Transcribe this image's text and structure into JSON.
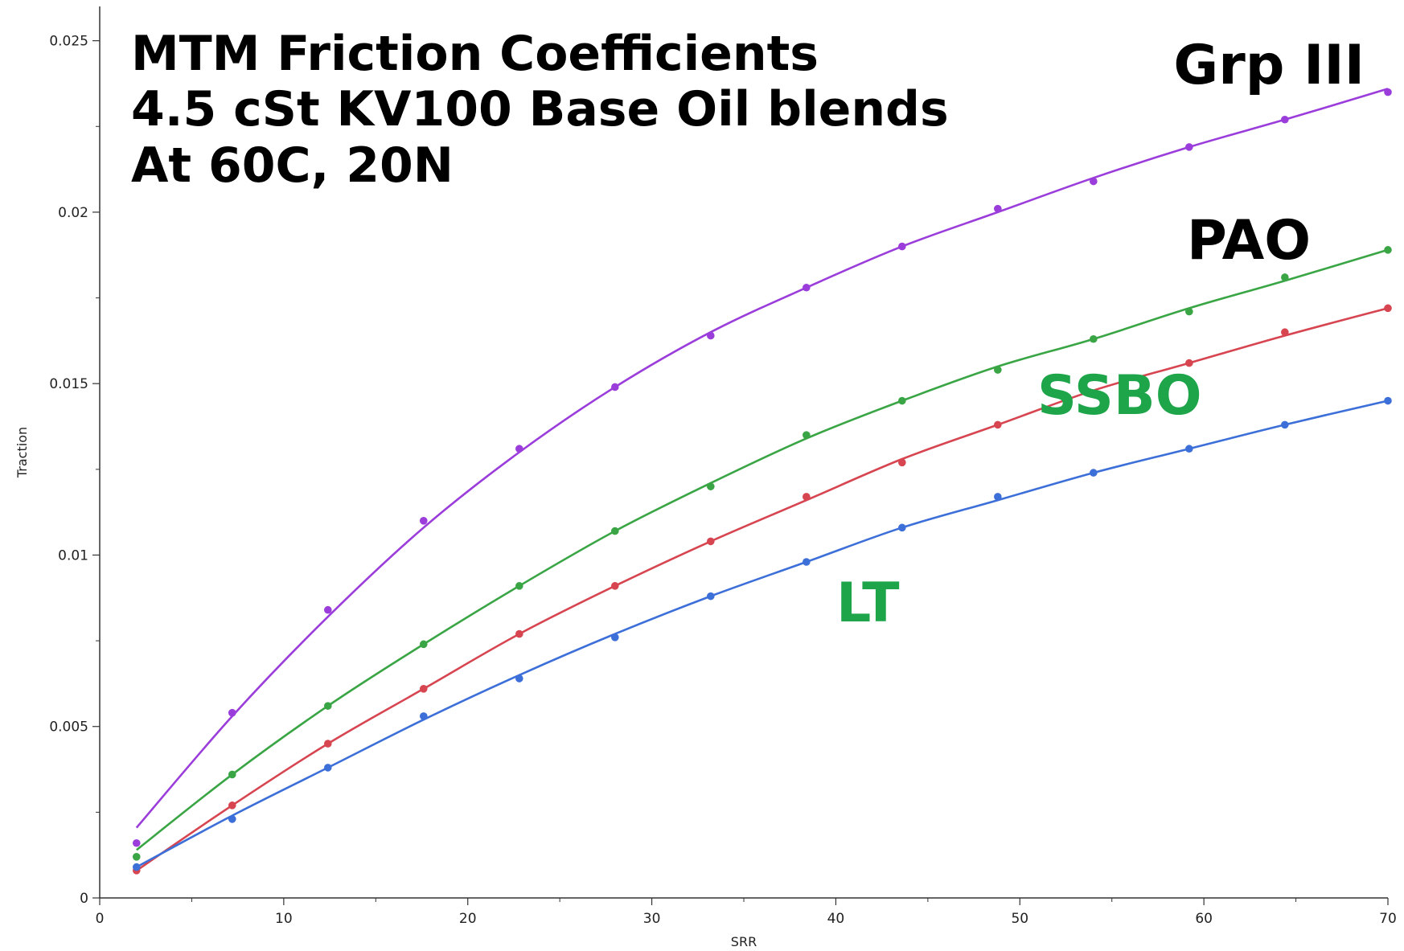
{
  "chart_data": {
    "type": "scatter",
    "title": [
      "MTM Friction Coefficients",
      "4.5 cSt KV100 Base Oil blends",
      "At 60C, 20N"
    ],
    "xlabel": "SRR",
    "ylabel": "Traction",
    "xlim": [
      0,
      70
    ],
    "ylim": [
      0,
      0.026
    ],
    "xticks": [
      0,
      10,
      20,
      30,
      40,
      50,
      60,
      70
    ],
    "xtick_labels": [
      "0",
      "10",
      "20",
      "30",
      "40",
      "50",
      "60",
      "70"
    ],
    "yticks": [
      0,
      0.005,
      0.01,
      0.015,
      0.02,
      0.025
    ],
    "ytick_labels": [
      "0",
      "0.005",
      "0.01",
      "0.015",
      "0.02",
      "0.025"
    ],
    "x": [
      2,
      7.2,
      12.4,
      17.6,
      22.8,
      28,
      33.2,
      38.4,
      43.6,
      48.8,
      54,
      59.2,
      64.4,
      70
    ],
    "series": [
      {
        "key": "grp3",
        "color": "#9b3ddb",
        "values": [
          0.0016,
          0.0054,
          0.0084,
          0.011,
          0.0131,
          0.0149,
          0.0164,
          0.0178,
          0.019,
          0.0201,
          0.0209,
          0.0219,
          0.0227,
          0.0235
        ],
        "fit": [
          0.00205,
          0.0053,
          0.0082,
          0.0108,
          0.013,
          0.0149,
          0.0165,
          0.0178,
          0.019,
          0.02,
          0.021,
          0.0219,
          0.0227,
          0.0236
        ]
      },
      {
        "key": "pao",
        "color": "#3aa545",
        "values": [
          0.0012,
          0.0036,
          0.0056,
          0.0074,
          0.0091,
          0.0107,
          0.012,
          0.0135,
          0.0145,
          0.0154,
          0.0163,
          0.0171,
          0.0181,
          0.0189
        ],
        "fit": [
          0.0014,
          0.0036,
          0.0056,
          0.0074,
          0.0091,
          0.0107,
          0.0121,
          0.0134,
          0.0145,
          0.0155,
          0.0163,
          0.0172,
          0.018,
          0.0189
        ]
      },
      {
        "key": "ssbo",
        "color": "#d64550",
        "values": [
          0.0008,
          0.0027,
          0.0045,
          0.0061,
          0.0077,
          0.0091,
          0.0104,
          0.0117,
          0.0127,
          0.0138,
          0.0147,
          0.0156,
          0.0165,
          0.0172
        ],
        "fit": [
          0.0008,
          0.0027,
          0.0045,
          0.0061,
          0.0077,
          0.0091,
          0.0104,
          0.0116,
          0.0128,
          0.0138,
          0.0148,
          0.0156,
          0.0164,
          0.0172
        ]
      },
      {
        "key": "lt",
        "color": "#3d6fd9",
        "values": [
          0.0009,
          0.0023,
          0.0038,
          0.0053,
          0.0064,
          0.0076,
          0.0088,
          0.0098,
          0.0108,
          0.0117,
          0.0124,
          0.0131,
          0.0138,
          0.0145
        ],
        "fit": [
          0.0009,
          0.0024,
          0.0038,
          0.0052,
          0.0065,
          0.0077,
          0.0088,
          0.0098,
          0.0108,
          0.0116,
          0.0124,
          0.0131,
          0.0138,
          0.0145
        ]
      }
    ],
    "annotations": [
      {
        "key": "grp3",
        "text": "Grp III",
        "color": "#000000"
      },
      {
        "key": "pao",
        "text": "PAO",
        "color": "#000000"
      },
      {
        "key": "ssbo",
        "text": "SSBO",
        "color": "#1ea54a"
      },
      {
        "key": "lt",
        "text": "LT",
        "color": "#1ea54a"
      }
    ]
  }
}
